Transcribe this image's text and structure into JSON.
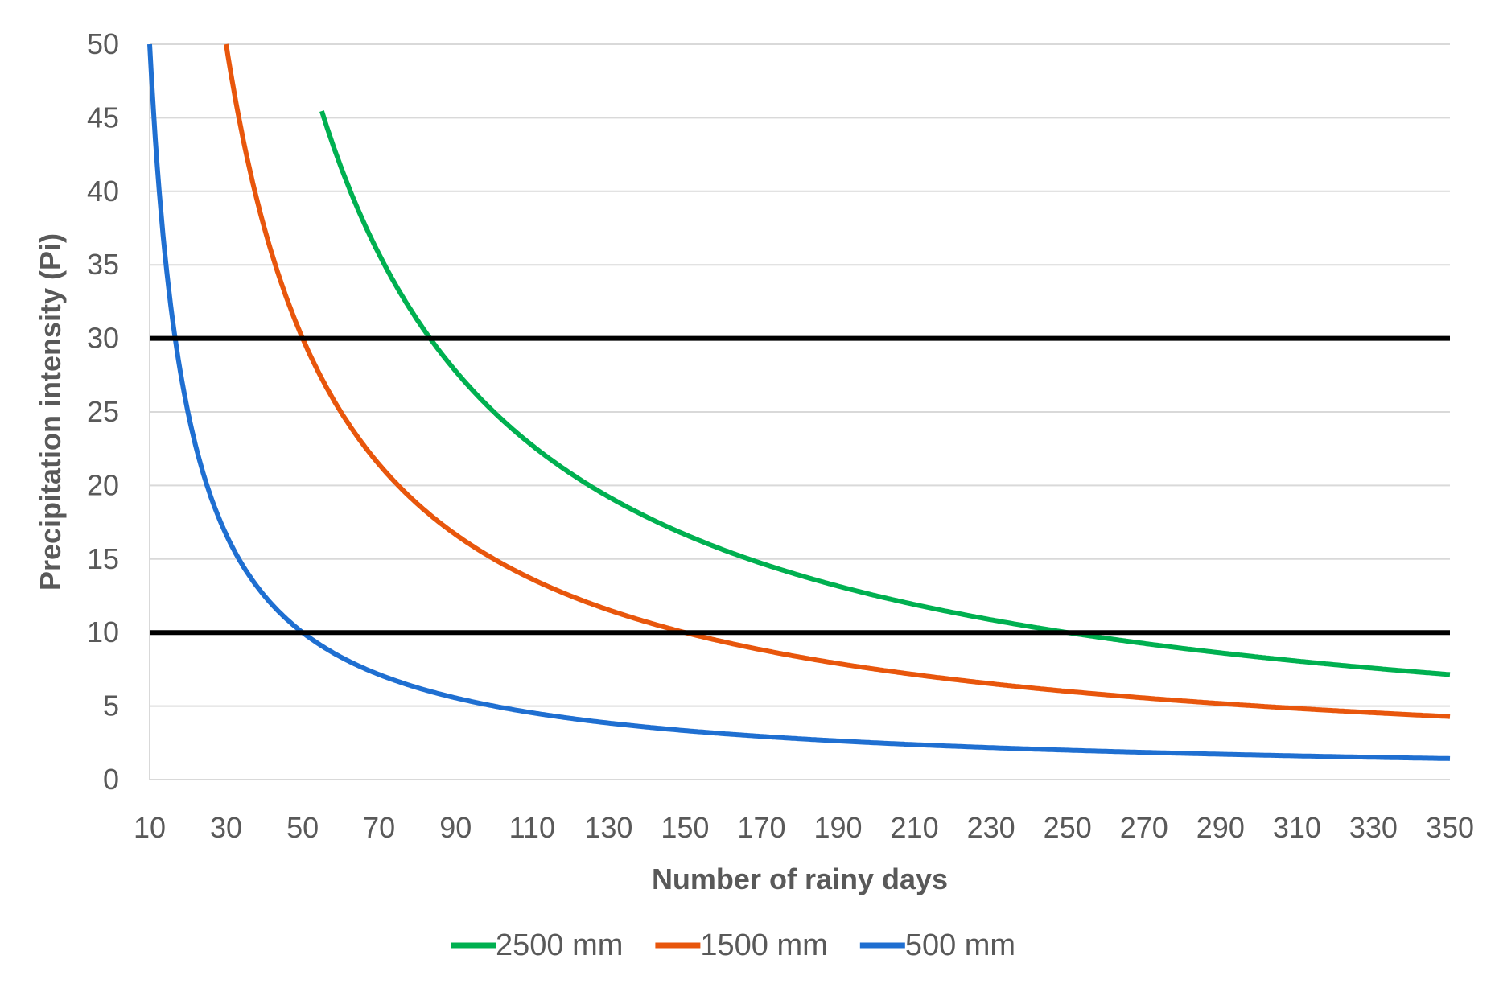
{
  "chart_data": {
    "type": "line",
    "title": "",
    "xlabel": "Number of rainy days",
    "ylabel": "Precipitation intensity (Pi)",
    "xlim": [
      10,
      350
    ],
    "ylim": [
      0,
      50
    ],
    "x_ticks": [
      10,
      30,
      50,
      70,
      90,
      110,
      130,
      150,
      170,
      190,
      210,
      230,
      250,
      270,
      290,
      310,
      330,
      350
    ],
    "y_ticks": [
      0,
      5,
      10,
      15,
      20,
      25,
      30,
      35,
      40,
      45,
      50
    ],
    "grid": true,
    "legend_position": "bottom",
    "series": [
      {
        "name": "2500 mm",
        "color": "#00b050",
        "total": 2500,
        "x_start": 55
      },
      {
        "name": "1500 mm",
        "color": "#e8560c",
        "total": 1500,
        "x_start": 30
      },
      {
        "name": "500 mm",
        "color": "#1f6fd1",
        "total": 500,
        "x_start": 10
      }
    ],
    "reference_lines": [
      {
        "y": 30,
        "color": "#000000"
      },
      {
        "y": 10,
        "color": "#000000"
      }
    ]
  }
}
